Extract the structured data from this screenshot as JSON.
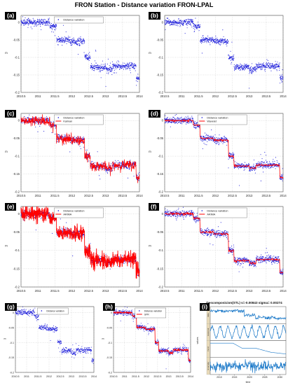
{
  "page": {
    "title": "FRON Station - Distance variation FRON-LPAL"
  },
  "colors": {
    "points": "#1010d8",
    "model_red": "#ff0000",
    "decomp_blue": "#1a78c8"
  },
  "panels": [
    {
      "id": "a",
      "label": "(a)",
      "legend": [
        "Distance variation"
      ],
      "model": "none"
    },
    {
      "id": "b",
      "label": "(b)",
      "legend": [],
      "model": "none"
    },
    {
      "id": "c",
      "label": "(c)",
      "legend": [
        "Distance variation",
        "Kalman"
      ],
      "model": "kalman"
    },
    {
      "id": "d",
      "label": "(d)",
      "legend": [
        "Distance variation",
        "Wavelet"
      ],
      "model": "wavelet"
    },
    {
      "id": "e",
      "label": "(e)",
      "legend": [
        "Distance variation",
        "ARIMA"
      ],
      "model": "arima"
    },
    {
      "id": "f",
      "label": "(f)",
      "legend": [
        "Distance variation",
        "ARIMA"
      ],
      "model": "wavelet"
    },
    {
      "id": "g",
      "label": "(g)",
      "legend": [
        "Distance variation"
      ],
      "model": "none"
    },
    {
      "id": "h",
      "label": "(h)",
      "legend": [
        "Distance variation",
        "GPR"
      ],
      "model": "wavelet"
    },
    {
      "id": "i",
      "label": "(i)",
      "legend": [],
      "model": "decomp"
    }
  ],
  "chart_data": {
    "type": "scatter",
    "ylabel": "m",
    "xlabel": "",
    "x_ticks": [
      "2010.5",
      "2011",
      "2011.5",
      "2012",
      "2012.5",
      "2013",
      "2013.5",
      "2014"
    ],
    "y_ticks": [
      "0",
      "-0.05",
      "-0.1",
      "-0.15",
      "-0.2"
    ],
    "xlim": [
      2010.5,
      2014
    ],
    "ylim": [
      -0.2,
      0.02
    ],
    "levels": [
      {
        "from": 2010.5,
        "to": 2011.35,
        "value": 0.0
      },
      {
        "from": 2011.35,
        "to": 2011.55,
        "value": -0.012
      },
      {
        "from": 2011.55,
        "to": 2011.95,
        "value": -0.05
      },
      {
        "from": 2011.95,
        "to": 2012.38,
        "value": -0.055
      },
      {
        "from": 2012.38,
        "to": 2012.55,
        "value": -0.1
      },
      {
        "from": 2012.55,
        "to": 2013.0,
        "value": -0.128
      },
      {
        "from": 2013.0,
        "to": 2013.2,
        "value": -0.135
      },
      {
        "from": 2013.2,
        "to": 2013.9,
        "value": -0.125
      },
      {
        "from": 2013.9,
        "to": 2014.0,
        "value": -0.16
      }
    ],
    "decomposition": {
      "title": "Descomposicion(STL) v=-0.00843  sigma= 0.00274",
      "x_ticks": [
        "2010",
        "2015",
        "2020",
        "2025",
        "2030"
      ],
      "xlabel": "time",
      "ylabel": "values",
      "component_labels": [
        "data",
        "seasonal",
        "trend",
        "remainder"
      ]
    }
  }
}
